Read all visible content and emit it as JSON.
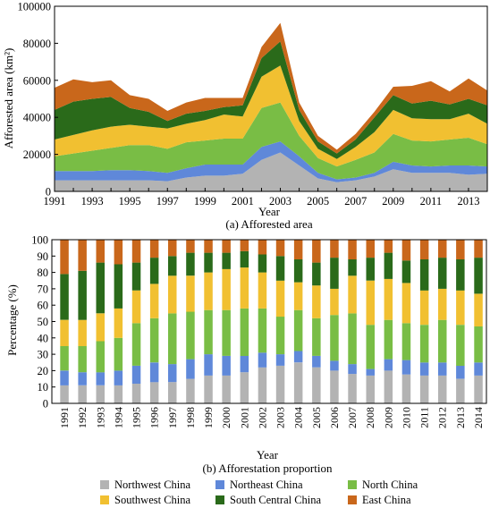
{
  "colors": {
    "Northwest China": "#b3b3b3",
    "Northeast China": "#5f88d9",
    "North China": "#79bd45",
    "Southwest China": "#f1c031",
    "South Central China": "#2a6a1a",
    "East China": "#c9671b"
  },
  "legend": {
    "items": [
      "Northwest China",
      "Northeast China",
      "North China",
      "Southwest China",
      "South Central China",
      "East China"
    ]
  },
  "chart_data": [
    {
      "type": "area",
      "stacked": true,
      "caption": "(a) Afforested area",
      "xlabel": "Year",
      "ylabel": "Afforested area (km²)",
      "ylim": [
        0,
        100000
      ],
      "xlim": [
        1991,
        2014
      ],
      "x_ticks": [
        "1991",
        "1993",
        "1995",
        "1997",
        "1999",
        "2001",
        "2003",
        "2005",
        "2007",
        "2009",
        "2011",
        "2013"
      ],
      "y_ticks": [
        "0",
        "20000",
        "40000",
        "60000",
        "80000",
        "100000"
      ],
      "x": [
        1991,
        1992,
        1993,
        1994,
        1995,
        1996,
        1997,
        1998,
        1999,
        2000,
        2001,
        2002,
        2003,
        2004,
        2005,
        2006,
        2007,
        2008,
        2009,
        2010,
        2011,
        2012,
        2013,
        2014
      ],
      "series": [
        {
          "name": "Northwest China",
          "values": [
            6000,
            6000,
            6000,
            6000,
            6000,
            6000,
            5500,
            7500,
            8500,
            8500,
            9500,
            17000,
            21000,
            14000,
            7000,
            5000,
            6000,
            8000,
            12000,
            10000,
            10000,
            10000,
            9000,
            9500
          ]
        },
        {
          "name": "Northeast China",
          "values": [
            5000,
            5000,
            5000,
            5500,
            5500,
            5000,
            4500,
            5000,
            6000,
            6000,
            5000,
            7000,
            6000,
            5000,
            3000,
            1500,
            1500,
            2000,
            4000,
            4000,
            3500,
            4000,
            5000,
            4000
          ]
        },
        {
          "name": "North China",
          "values": [
            8000,
            9500,
            11000,
            12000,
            13500,
            14000,
            13000,
            14000,
            13000,
            14000,
            14000,
            21000,
            21000,
            11000,
            8000,
            7000,
            9500,
            11000,
            15000,
            13500,
            13500,
            14000,
            15000,
            12000
          ]
        },
        {
          "name": "Southwest China",
          "values": [
            9000,
            10000,
            11000,
            11500,
            11000,
            10000,
            11000,
            10000,
            11000,
            13000,
            12000,
            17000,
            20000,
            8000,
            5000,
            4000,
            7000,
            11000,
            13000,
            12000,
            12000,
            11000,
            13000,
            11000
          ]
        },
        {
          "name": "South Central China",
          "values": [
            16000,
            18000,
            17000,
            16000,
            9000,
            8000,
            4000,
            5500,
            5000,
            4000,
            6000,
            10000,
            13000,
            6000,
            4000,
            3000,
            4000,
            8000,
            8000,
            8000,
            10000,
            8000,
            8000,
            10000
          ]
        },
        {
          "name": "East China",
          "values": [
            12000,
            12000,
            9000,
            9000,
            7000,
            7000,
            5500,
            6000,
            7000,
            5000,
            4000,
            6000,
            10000,
            4000,
            3000,
            2000,
            3000,
            3000,
            4500,
            9500,
            10500,
            7000,
            11000,
            8000
          ]
        }
      ]
    },
    {
      "type": "bar",
      "stacked": true,
      "caption": "(b) Afforestation proportion",
      "xlabel": "Year",
      "ylabel": "Percentage (%)",
      "ylim": [
        0,
        100
      ],
      "y_ticks": [
        "0",
        "10",
        "20",
        "30",
        "40",
        "50",
        "60",
        "70",
        "80",
        "90",
        "100"
      ],
      "categories": [
        "1991",
        "1992",
        "1993",
        "1994",
        "1995",
        "1996",
        "1997",
        "1998",
        "1999",
        "2000",
        "2001",
        "2002",
        "2003",
        "2004",
        "2005",
        "2006",
        "2007",
        "2008",
        "2009",
        "2010",
        "2011",
        "2012",
        "2013",
        "2014"
      ],
      "series": [
        {
          "name": "Northwest China",
          "values": [
            11,
            11,
            11,
            11,
            12,
            13,
            13,
            15,
            17,
            17,
            19,
            22,
            23,
            25,
            22,
            20,
            18,
            17,
            20,
            18,
            17,
            17,
            15,
            17
          ]
        },
        {
          "name": "Northeast China",
          "values": [
            9,
            8,
            8,
            9,
            11,
            12,
            11,
            12,
            13,
            12,
            10,
            9,
            7,
            7,
            7,
            6,
            6,
            4,
            7,
            9,
            8,
            8,
            8,
            8
          ]
        },
        {
          "name": "North China",
          "values": [
            15,
            16,
            19,
            20,
            26,
            27,
            31,
            29,
            27,
            28,
            29,
            27,
            23,
            25,
            23,
            28,
            31,
            27,
            24,
            23,
            23,
            26,
            25,
            22
          ]
        },
        {
          "name": "Southwest China",
          "values": [
            16,
            16,
            17,
            18,
            20,
            21,
            23,
            22,
            23,
            25,
            25,
            22,
            22,
            17,
            20,
            16,
            23,
            27,
            25,
            25,
            21,
            19,
            21,
            20
          ]
        },
        {
          "name": "South Central China",
          "values": [
            28,
            30,
            31,
            27,
            17,
            16,
            12,
            14,
            12,
            10,
            10,
            11,
            15,
            14,
            14,
            19,
            10,
            14,
            16,
            14,
            19,
            19,
            19,
            22
          ]
        },
        {
          "name": "East China",
          "values": [
            21,
            19,
            14,
            15,
            14,
            11,
            10,
            8,
            8,
            8,
            7,
            9,
            10,
            12,
            14,
            11,
            12,
            11,
            8,
            13,
            12,
            11,
            12,
            11
          ]
        }
      ]
    }
  ]
}
